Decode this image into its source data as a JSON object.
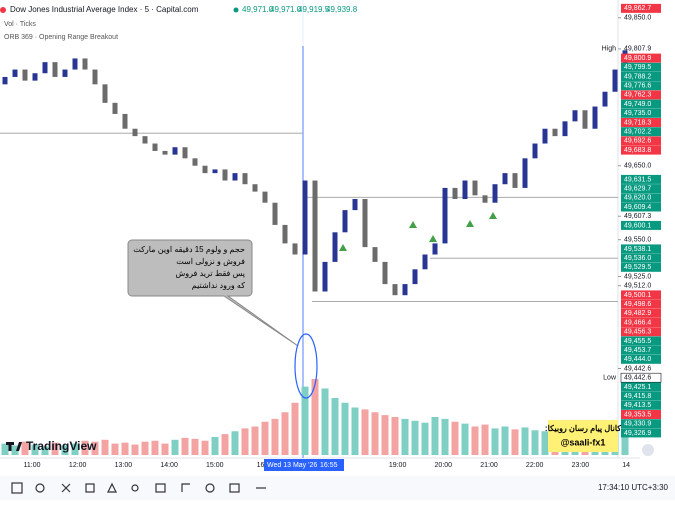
{
  "header": {
    "title": "Dow Jones Industrial Average Index · 5 · Capital.com",
    "quotes": [
      "49,971.0",
      "49,971.0",
      "49,919.5",
      "49,939.8"
    ]
  },
  "indicators": [
    "Vol · Ticks",
    "ORB 369 · Opening Range Breakout"
  ],
  "chart_data": {
    "type": "candlestick",
    "ylim": [
      49259,
      49874
    ],
    "open": [
      49760,
      49770,
      49780,
      49765,
      49775,
      49790,
      49770,
      49780,
      49795,
      49780,
      49760,
      49735,
      49720,
      49700,
      49690,
      49680,
      49670,
      49665,
      49675,
      49660,
      49650,
      49640,
      49645,
      49630,
      49640,
      49625,
      49615,
      49600,
      49570,
      49545,
      49530,
      49630,
      49480,
      49520,
      49560,
      49590,
      49605,
      49540,
      49520,
      49490,
      49475,
      49490,
      49510,
      49530,
      49545,
      49620,
      49605,
      49630,
      49610,
      49600,
      49625,
      49640,
      49620,
      49660,
      49680,
      49700,
      49690,
      49710,
      49725,
      49700,
      49730,
      49750,
      49780
    ],
    "close": [
      49770,
      49780,
      49765,
      49775,
      49790,
      49770,
      49780,
      49795,
      49780,
      49760,
      49735,
      49720,
      49700,
      49690,
      49680,
      49670,
      49665,
      49675,
      49660,
      49650,
      49640,
      49645,
      49630,
      49640,
      49625,
      49615,
      49600,
      49570,
      49545,
      49530,
      49630,
      49480,
      49520,
      49560,
      49590,
      49605,
      49540,
      49520,
      49490,
      49475,
      49490,
      49510,
      49530,
      49545,
      49620,
      49605,
      49630,
      49610,
      49600,
      49625,
      49640,
      49620,
      49660,
      49680,
      49700,
      49690,
      49710,
      49725,
      49700,
      49730,
      49750,
      49780,
      49806
    ],
    "volume": [
      12,
      10,
      14,
      11,
      9,
      13,
      10,
      12,
      15,
      14,
      16,
      12,
      13,
      11,
      14,
      15,
      12,
      16,
      18,
      17,
      15,
      19,
      22,
      25,
      28,
      30,
      35,
      38,
      45,
      55,
      72,
      80,
      70,
      60,
      55,
      50,
      48,
      45,
      42,
      40,
      38,
      36,
      34,
      40,
      38,
      35,
      33,
      30,
      32,
      28,
      30,
      27,
      29,
      26,
      25,
      28,
      24,
      26,
      22,
      25,
      27,
      24,
      26
    ],
    "vol_ylim": [
      0,
      100
    ],
    "up_color": "#283593",
    "down_color": "#6b6b6b",
    "vol_up_color": "#7fcfc4",
    "vol_down_color": "#f4a3a3",
    "levels": [
      49694,
      49607.3,
      49525,
      49466.4
    ],
    "x_labels": [
      "11:00",
      "12:00",
      "13:00",
      "14:00",
      "15:00",
      "16",
      null,
      null,
      "19:00",
      "20:00",
      "21:00",
      "22:00",
      "23:00",
      "14"
    ],
    "crosshair_date": "Wed 13 May '26",
    "crosshair_time": "16:55",
    "high_label": "High",
    "low_label": "Low",
    "price_labels": [
      {
        "value": 49862.7,
        "label": "49,862.7",
        "color": "#f23645"
      },
      {
        "value": 49850,
        "label": "49,850.0",
        "color": "none"
      },
      {
        "value": 49807.9,
        "label": "49,807.9",
        "color": "none"
      },
      {
        "value": 49800.9,
        "label": "49,800.9",
        "color": "#f23645"
      },
      {
        "value": 49799.5,
        "label": "49,799.5",
        "color": "#089981"
      },
      {
        "value": 49788.2,
        "label": "49,788.2",
        "color": "#089981"
      },
      {
        "value": 49776.6,
        "label": "49,776.6",
        "color": "#089981"
      },
      {
        "value": 49762.3,
        "label": "49,762.3",
        "color": "#f23645"
      },
      {
        "value": 49749,
        "label": "49,749.0",
        "color": "#089981"
      },
      {
        "value": 49735,
        "label": "49,735.0",
        "color": "#089981"
      },
      {
        "value": 49718.3,
        "label": "49,718.3",
        "color": "#f23645"
      },
      {
        "value": 49702.2,
        "label": "49,702.2",
        "color": "#089981"
      },
      {
        "value": 49692.6,
        "label": "49,692.6",
        "color": "#f23645"
      },
      {
        "value": 49683.8,
        "label": "49,683.8",
        "color": "#f23645"
      },
      {
        "value": 49650,
        "label": "49,650.0",
        "color": "none"
      },
      {
        "value": 49631.5,
        "label": "49,631.5",
        "color": "#089981"
      },
      {
        "value": 49629.7,
        "label": "49,629.7",
        "color": "#089981"
      },
      {
        "value": 49620,
        "label": "49,620.0",
        "color": "#089981"
      },
      {
        "value": 49609.4,
        "label": "49,609.4",
        "color": "#089981"
      },
      {
        "value": 49607.3,
        "label": "49,607.3",
        "color": "none"
      },
      {
        "value": 49600.1,
        "label": "49,600.1",
        "color": "#089981"
      },
      {
        "value": 49550,
        "label": "49,550.0",
        "color": "none"
      },
      {
        "value": 49538.1,
        "label": "49,538.1",
        "color": "#089981"
      },
      {
        "value": 49536,
        "label": "49,536.0",
        "color": "#089981"
      },
      {
        "value": 49529.5,
        "label": "49,529.5",
        "color": "#089981"
      },
      {
        "value": 49525,
        "label": "49,525.0",
        "color": "none"
      },
      {
        "value": 49512,
        "label": "49,512.0",
        "color": "none"
      },
      {
        "value": 49500.1,
        "label": "49,500.1",
        "color": "#f23645"
      },
      {
        "value": 49498.6,
        "label": "49,498.6",
        "color": "#f23645"
      },
      {
        "value": 49482.9,
        "label": "49,482.9",
        "color": "#f23645"
      },
      {
        "value": 49466.4,
        "label": "49,466.4",
        "color": "#f23645"
      },
      {
        "value": 49456.3,
        "label": "49,456.3",
        "color": "#f23645"
      },
      {
        "value": 49455.5,
        "label": "49,455.5",
        "color": "#089981"
      },
      {
        "value": 49453.7,
        "label": "49,453.7",
        "color": "#089981"
      },
      {
        "value": 49444,
        "label": "49,444.0",
        "color": "#089981"
      },
      {
        "value": 49442.6,
        "label": "49,442.6",
        "color": "none"
      },
      {
        "value": 49442.6,
        "label": "49,442.6",
        "color": "#ffffff"
      },
      {
        "value": 49425.1,
        "label": "49,425.1",
        "color": "#089981"
      },
      {
        "value": 49415.8,
        "label": "49,415.8",
        "color": "#089981"
      },
      {
        "value": 49413.5,
        "label": "49,413.5",
        "color": "#089981"
      },
      {
        "value": 49353.5,
        "label": "49,353.5",
        "color": "#f23645"
      },
      {
        "value": 49330.9,
        "label": "49,330.9",
        "color": "#089981"
      },
      {
        "value": 49326.9,
        "label": "49,326.9",
        "color": "#089981"
      }
    ]
  },
  "annotation": [
    "حجم و ولوم 15 دقیقه اوین مارکت",
    "فروش و نزولی است",
    "پس فقط ترید فروش",
    "که ورود نداشتیم"
  ],
  "promo": [
    "کانال پیام رسان روبیکا:",
    "@saali-fx1"
  ],
  "watermark": "TradingView",
  "clock": "17:34:10 UTC+3:30"
}
